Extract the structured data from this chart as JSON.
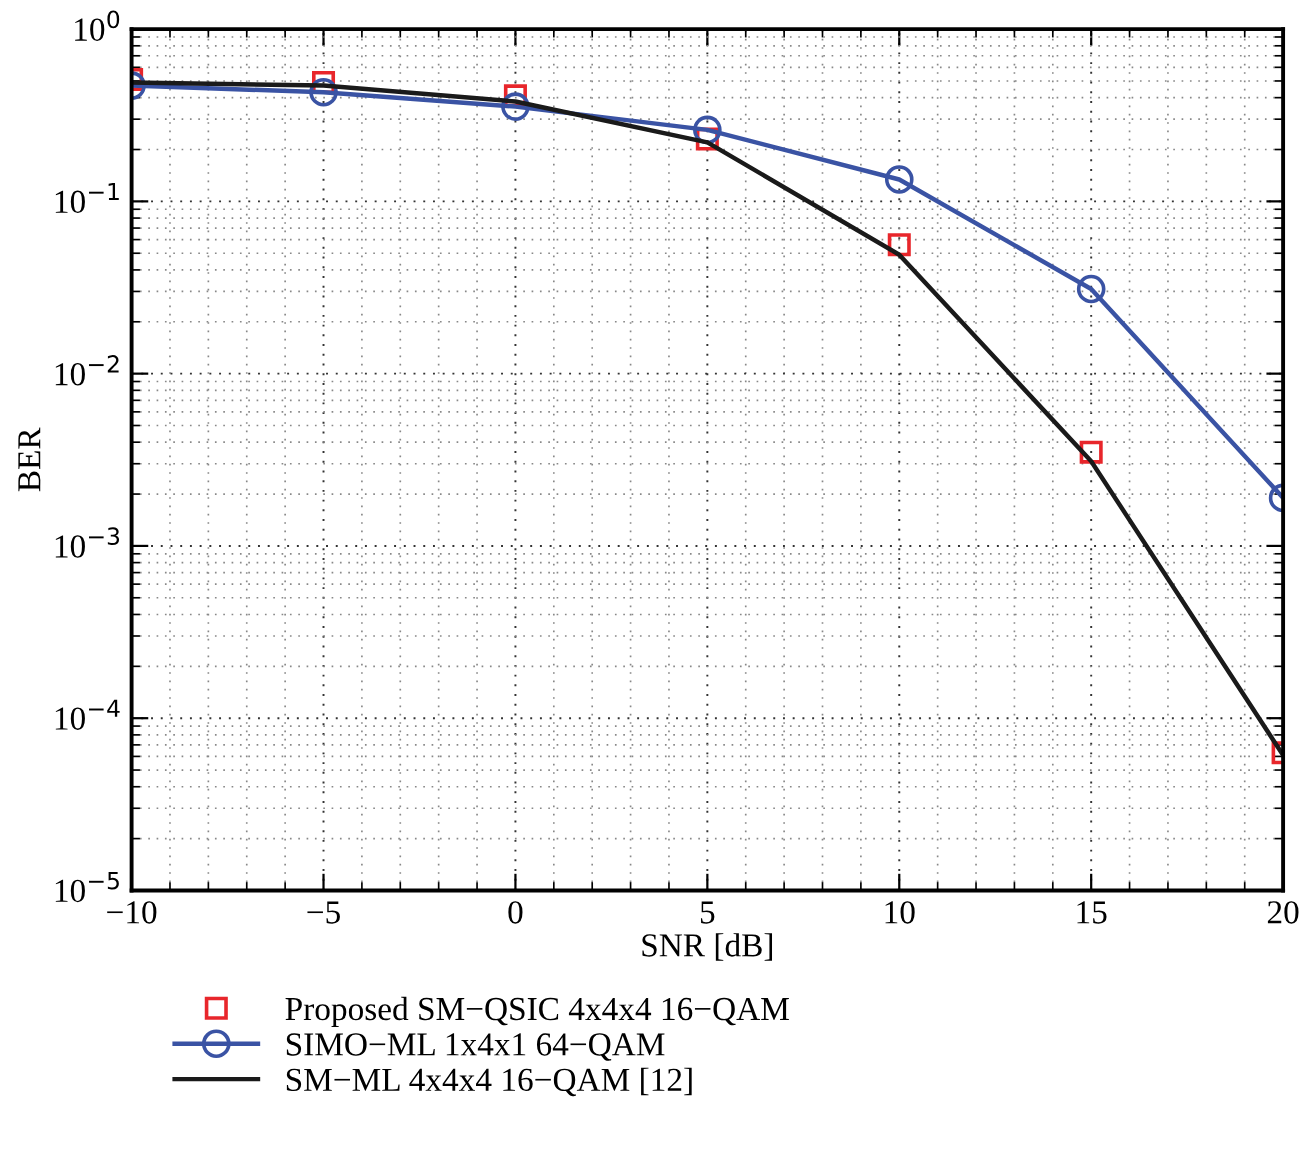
{
  "chart_data": {
    "type": "line",
    "xlabel": "SNR [dB]",
    "ylabel": "BER",
    "log": "y",
    "x": [
      -10,
      -5,
      0,
      5,
      10,
      15,
      20
    ],
    "series": [
      {
        "name": "Proposed SM−QSIC 4x4x4 16−QAM",
        "type": "scatter",
        "marker": "square",
        "color": "#e8262b",
        "values": [
          0.51,
          0.49,
          0.41,
          0.23,
          0.056,
          0.0035,
          6.3e-05
        ]
      },
      {
        "name": "SIMO−ML 1x4x1 64−QAM",
        "marker": "circle",
        "color": "#3a53a4",
        "values": [
          0.47,
          0.43,
          0.355,
          0.26,
          0.134,
          0.031,
          0.0019
        ]
      },
      {
        "name": "SM−ML 4x4x4 16−QAM [12]",
        "color": "#1a1a1a",
        "values": [
          0.49,
          0.47,
          0.38,
          0.22,
          0.049,
          0.0031,
          6.1e-05
        ]
      }
    ],
    "xlim": [
      -10,
      20
    ],
    "xticks": [
      {
        "value": -10,
        "label": "−10"
      },
      {
        "value": -5,
        "label": "−5"
      },
      0,
      5,
      10,
      15,
      20
    ],
    "ylim": [
      1e-05,
      1
    ],
    "yticks": [
      {
        "value": 1e-05,
        "label": "10$^{−5}$"
      },
      {
        "value": 0.0001,
        "label": "10$^{−4}$"
      },
      {
        "value": 0.001,
        "label": "10$^{−3}$"
      },
      {
        "value": 0.01,
        "label": "10$^{−2}$"
      },
      {
        "value": 0.1,
        "label": "10$^{−1}$"
      },
      {
        "value": 1,
        "label": "10$^{0}$"
      }
    ],
    "grid": true,
    "legend": "bottom",
    "line_style": "solid"
  }
}
